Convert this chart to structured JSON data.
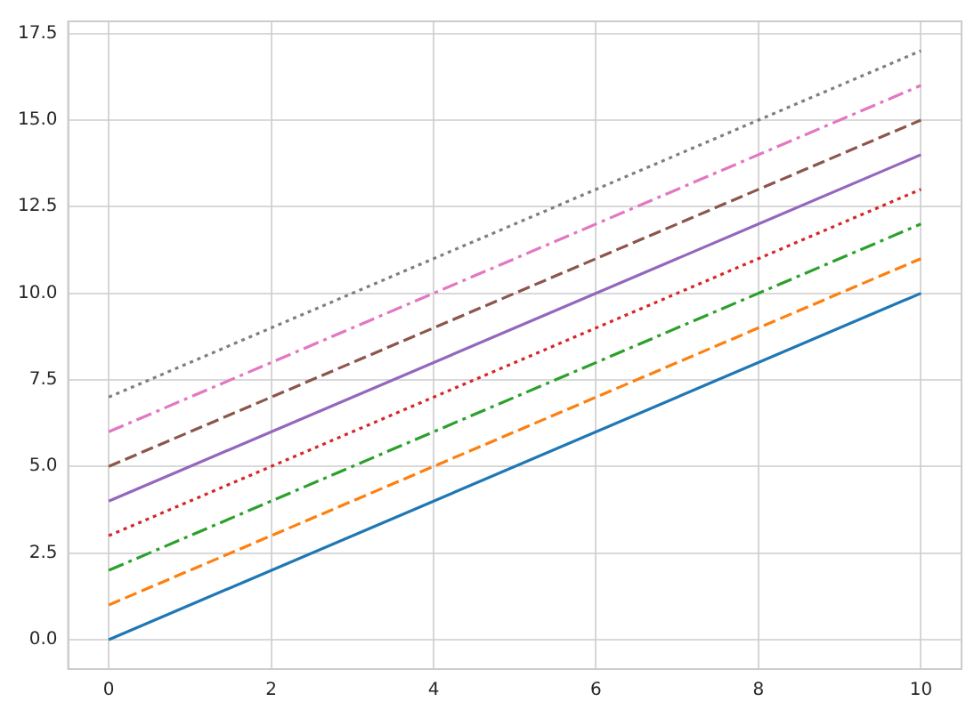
{
  "chart_data": {
    "type": "line",
    "x": [
      0,
      10
    ],
    "series": [
      {
        "color": "#1f77b4",
        "values": [
          0,
          10
        ],
        "line_style": "solid"
      },
      {
        "color": "#ff7f0e",
        "values": [
          1,
          11
        ],
        "line_style": "dashed"
      },
      {
        "color": "#2ca02c",
        "values": [
          2,
          12
        ],
        "line_style": "dashdot"
      },
      {
        "color": "#d62728",
        "values": [
          3,
          13
        ],
        "line_style": "dotted"
      },
      {
        "color": "#9467bd",
        "values": [
          4,
          14
        ],
        "line_style": "solid"
      },
      {
        "color": "#8c564b",
        "values": [
          5,
          15
        ],
        "line_style": "dashed"
      },
      {
        "color": "#e377c2",
        "values": [
          6,
          16
        ],
        "line_style": "dashdot"
      },
      {
        "color": "#7f7f7f",
        "values": [
          7,
          17
        ],
        "line_style": "dotted"
      }
    ],
    "xlim": [
      -0.5,
      10.5
    ],
    "xticks": [
      0,
      2,
      4,
      6,
      8,
      10
    ],
    "ylim": [
      -0.85,
      17.85
    ],
    "yticks": [
      {
        "value": 0,
        "label": "0.0"
      },
      {
        "value": 2.5,
        "label": "2.5"
      },
      {
        "value": 5,
        "label": "5.0"
      },
      {
        "value": 7.5,
        "label": "7.5"
      },
      {
        "value": 10,
        "label": "10.0"
      },
      {
        "value": 12.5,
        "label": "12.5"
      },
      {
        "value": 15,
        "label": "15.0"
      },
      {
        "value": 17.5,
        "label": "17.5"
      }
    ],
    "grid": true,
    "legend": false,
    "marker": "none"
  }
}
